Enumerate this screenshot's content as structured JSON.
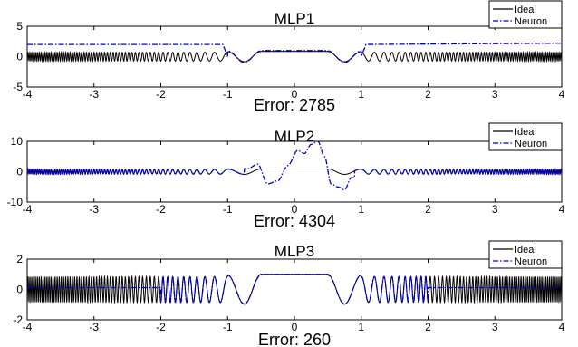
{
  "chart_data": [
    {
      "type": "line",
      "title": "MLP1",
      "caption": "Error: 2785",
      "xlim": [
        -4,
        4
      ],
      "ylim": [
        -5,
        5
      ],
      "xticks": [
        "-4",
        "-3",
        "-2",
        "-1",
        "0",
        "1",
        "2",
        "3",
        "4"
      ],
      "yticks": [
        "5",
        "0",
        "-5"
      ],
      "legend": {
        "placement": "top-right",
        "entries": [
          "Ideal",
          "Neuron"
        ]
      },
      "grid": false,
      "series": [
        {
          "name": "Ideal",
          "style": "solid",
          "color": "#000000",
          "description": "sinc-like oscillation, central plateau ~1 on [-0.5,0.5], dips ~-1 near |x|~0.75, amplitude ~0.8 outside"
        },
        {
          "name": "Neuron",
          "style": "dash-dot",
          "color": "#0000cc",
          "x": [
            -4,
            -1.05,
            -1.0,
            -0.5,
            0.5,
            1.0,
            1.05,
            4
          ],
          "y": [
            2,
            2,
            0,
            1,
            1,
            0,
            2,
            2.2
          ]
        }
      ]
    },
    {
      "type": "line",
      "title": "MLP2",
      "caption": "Error: 4304",
      "xlim": [
        -4,
        4
      ],
      "ylim": [
        -10,
        10
      ],
      "xticks": [
        "-4",
        "-3",
        "-2",
        "-1",
        "0",
        "1",
        "2",
        "3",
        "4"
      ],
      "yticks": [
        "10",
        "0",
        "-10"
      ],
      "legend": {
        "placement": "top-right",
        "entries": [
          "Ideal",
          "Neuron"
        ]
      },
      "grid": false,
      "series": [
        {
          "name": "Ideal",
          "style": "solid",
          "color": "#000000",
          "description": "same ideal function, appears as small oscillation at this scale"
        },
        {
          "name": "Neuron",
          "style": "dash-dot",
          "color": "#0000cc",
          "x": [
            -0.7,
            -0.55,
            -0.4,
            -0.25,
            -0.1,
            0.05,
            0.15,
            0.25,
            0.35,
            0.45,
            0.55,
            0.65,
            0.75,
            0.85
          ],
          "y": [
            1,
            2.5,
            -4,
            -3,
            2,
            7,
            6,
            9,
            10,
            5,
            -4,
            -5,
            -6,
            -2
          ]
        }
      ]
    },
    {
      "type": "line",
      "title": "MLP3",
      "caption": "Error: 260",
      "xlim": [
        -4,
        4
      ],
      "ylim": [
        -2,
        2
      ],
      "xticks": [
        "-4",
        "-3",
        "-2",
        "-1",
        "0",
        "1",
        "2",
        "3",
        "4"
      ],
      "yticks": [
        "2",
        "0",
        "-2"
      ],
      "legend": {
        "placement": "top-right",
        "entries": [
          "Ideal",
          "Neuron"
        ]
      },
      "grid": false,
      "series": [
        {
          "name": "Ideal",
          "style": "solid",
          "color": "#000000",
          "description": "dense oscillation amplitude ~0.9 around central plateau of 1"
        },
        {
          "name": "Neuron",
          "style": "dash-dot",
          "color": "#0000cc",
          "description": "matches ideal on approx [-2, 2], flat ~0.1 outside"
        }
      ]
    }
  ]
}
